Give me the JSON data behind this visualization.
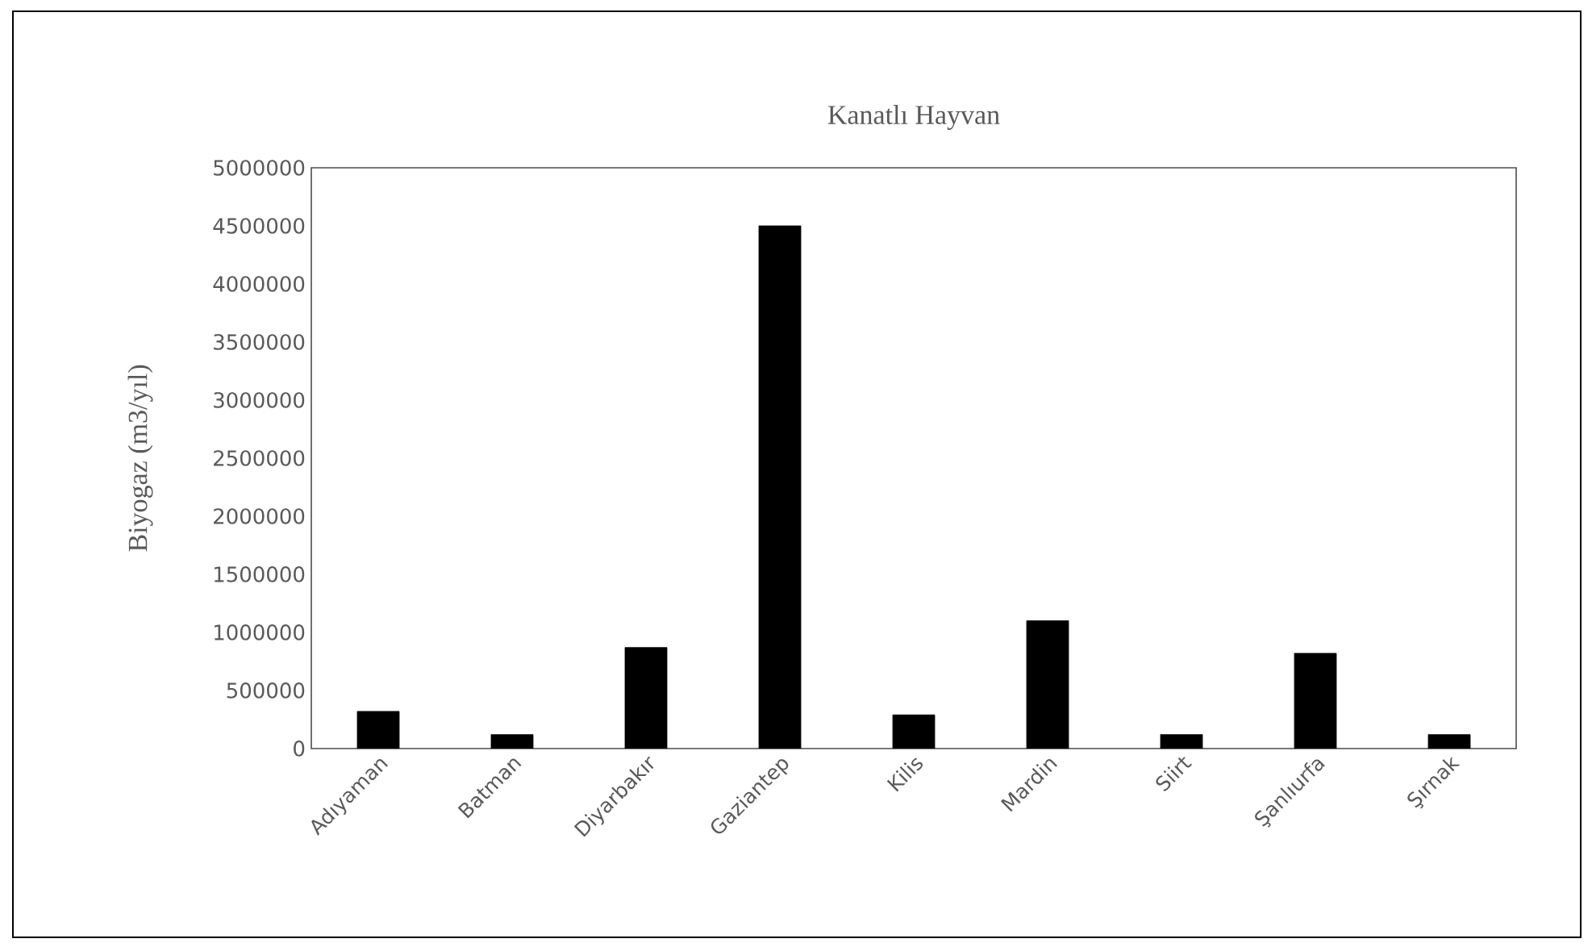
{
  "chart_data": {
    "type": "bar",
    "title": "Kanatlı  Hayvan",
    "ylabel": "Biyogaz  (m3/yıl)",
    "categories": [
      "Adıyaman",
      "Batman",
      "Diyarbakır",
      "Gaziantep",
      "Kilis",
      "Mardin",
      "Siirt",
      "Şanlıurfa",
      "Şırnak"
    ],
    "values": [
      320000,
      120000,
      870000,
      4500000,
      290000,
      1100000,
      120000,
      820000,
      120000
    ],
    "color": "#000000",
    "ylim": [
      0,
      5000000
    ],
    "yticks": [
      0,
      500000,
      1000000,
      1500000,
      2000000,
      2500000,
      3000000,
      3500000,
      4000000,
      4500000,
      5000000
    ],
    "grid": false
  }
}
